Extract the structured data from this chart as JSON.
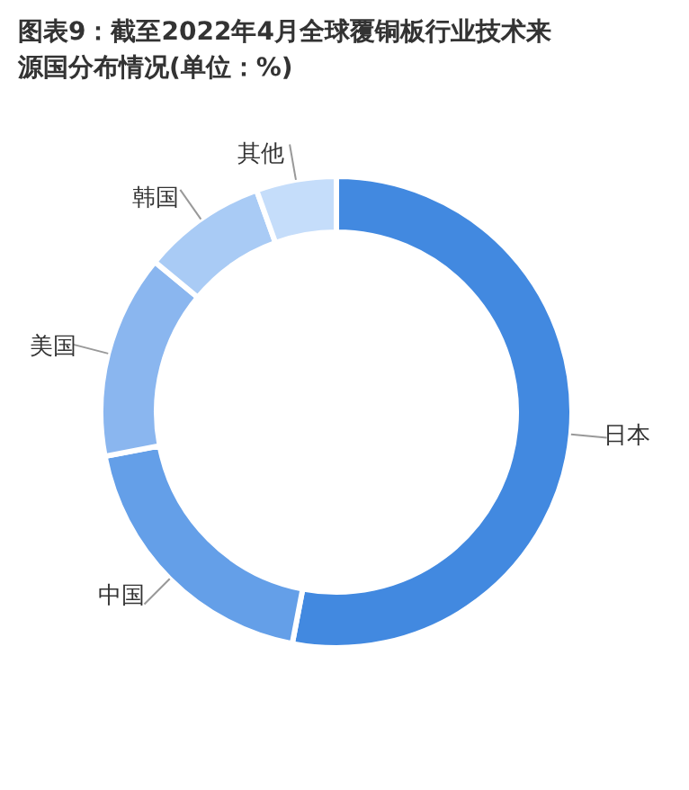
{
  "chart_data": {
    "type": "donut",
    "title": "图表9：截至2022年4月全球覆铜板行业技术来源国分布情况(单位：%)",
    "categories": [
      "日本",
      "中国",
      "美国",
      "韩国",
      "其他"
    ],
    "values": [
      53,
      19,
      14,
      8.5,
      5.5
    ],
    "colors": [
      "#4289e0",
      "#649fe8",
      "#8ab6ef",
      "#a9cbf5",
      "#c5ddfa"
    ],
    "legend": false
  }
}
